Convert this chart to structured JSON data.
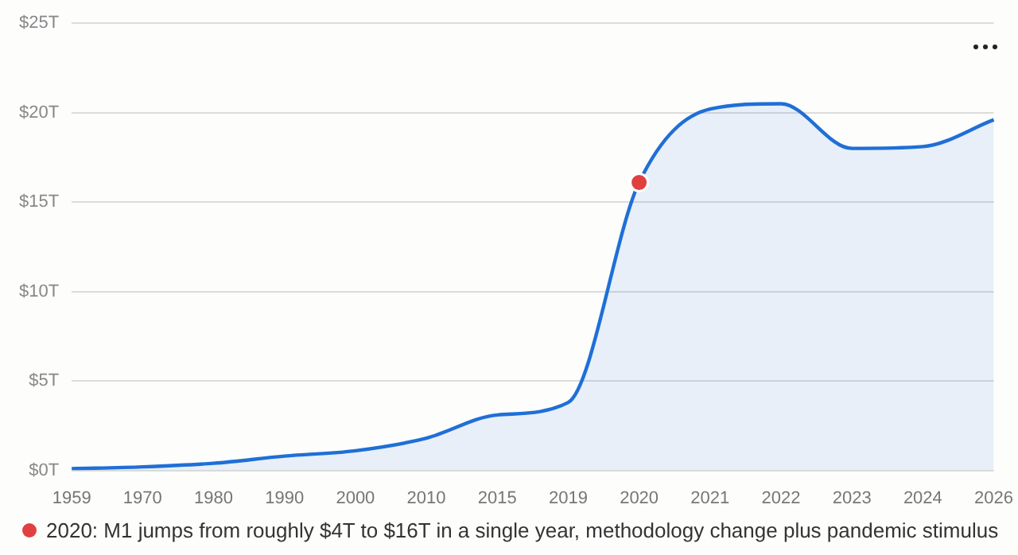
{
  "chart_data": {
    "type": "area",
    "categories": [
      "1959",
      "1970",
      "1980",
      "1990",
      "2000",
      "2010",
      "2015",
      "2019",
      "2020",
      "2021",
      "2022",
      "2023",
      "2024",
      "2026"
    ],
    "series": [
      {
        "color": "#1f6fd6",
        "marker": "none",
        "values": [
          0.1,
          0.2,
          0.4,
          0.8,
          1.1,
          1.8,
          3.1,
          3.8,
          16.1,
          20.2,
          20.5,
          18.0,
          18.1,
          19.6
        ]
      },
      {
        "type": "scatter",
        "color": "#e04040",
        "marker": "circle",
        "values": [
          null,
          null,
          null,
          null,
          null,
          null,
          null,
          null,
          16.1,
          null,
          null,
          null,
          null,
          null
        ]
      }
    ],
    "ylim": [
      0,
      25
    ],
    "yticks": [
      {
        "value": 0,
        "label": "$0T"
      },
      {
        "value": 5,
        "label": "$5T"
      },
      {
        "value": 10,
        "label": "$10T"
      },
      {
        "value": 15,
        "label": "$15T"
      },
      {
        "value": 20,
        "label": "$20T"
      },
      {
        "value": 25,
        "label": "$25T"
      }
    ],
    "grid": "y",
    "legend": false,
    "annotations": [
      "2020: M1 jumps from roughly $4T to $16T in a single year, methodology change plus pandemic stimulus"
    ]
  }
}
